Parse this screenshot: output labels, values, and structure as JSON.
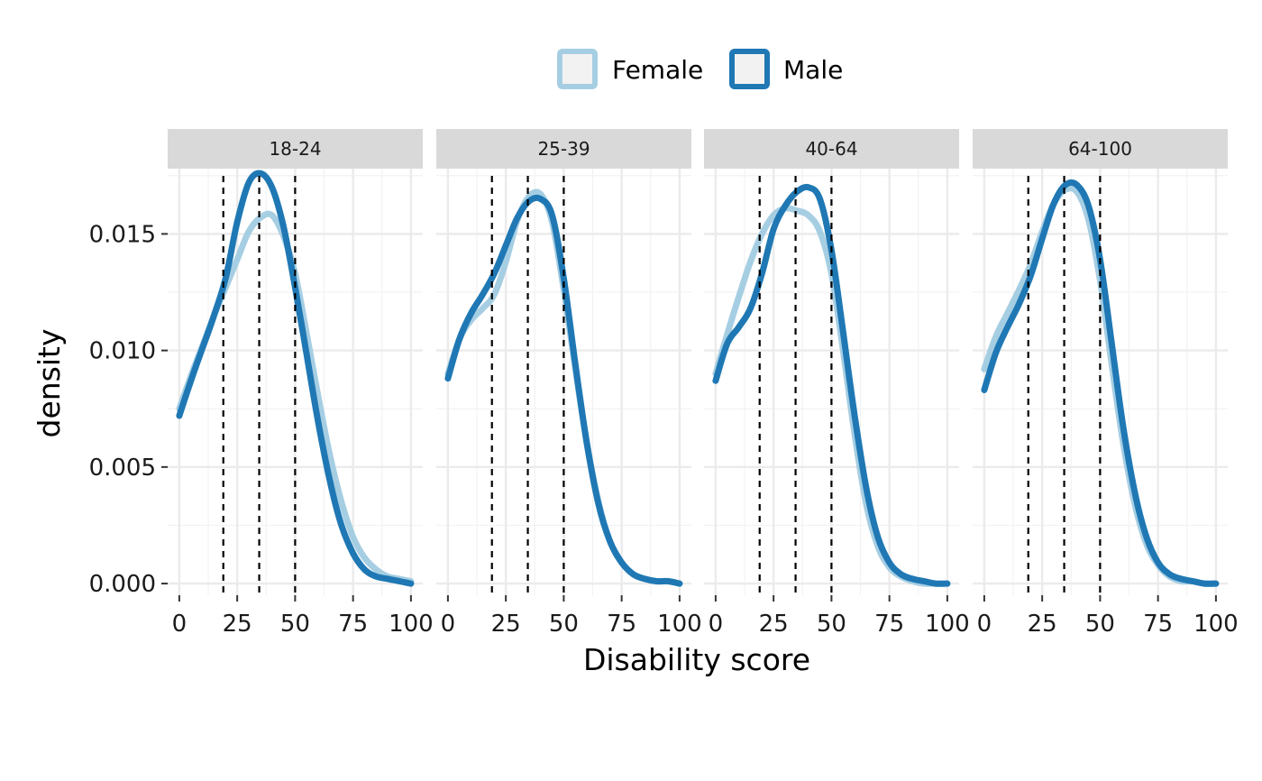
{
  "chart_data": {
    "type": "line",
    "title": "",
    "xlabel": "Disability score",
    "ylabel": "density",
    "xlim": [
      0,
      100
    ],
    "ylim": [
      -0.0005,
      0.0178
    ],
    "x_ticks": [
      0,
      25,
      50,
      75,
      100
    ],
    "y_ticks": [
      0.0,
      0.005,
      0.01,
      0.015
    ],
    "y_tick_labels": [
      "0.000",
      "0.005",
      "0.010",
      "0.015"
    ],
    "grid": true,
    "legend_position": "top",
    "reference_lines_x": [
      19,
      34.5,
      50
    ],
    "reference_line_style": "dashed",
    "series_names": [
      "Female",
      "Male"
    ],
    "series_colors": {
      "Female": "#a6cee3",
      "Male": "#1f78b4"
    },
    "x": [
      0,
      5,
      10,
      15,
      20,
      25,
      30,
      35,
      40,
      45,
      50,
      55,
      60,
      65,
      70,
      75,
      80,
      85,
      90,
      95,
      100
    ],
    "panels": [
      {
        "label": "18-24",
        "series": [
          {
            "name": "Female",
            "values": [
              0.0075,
              0.0089,
              0.0102,
              0.0115,
              0.0127,
              0.0139,
              0.0151,
              0.0157,
              0.0158,
              0.0149,
              0.0133,
              0.0107,
              0.008,
              0.0055,
              0.0035,
              0.002,
              0.0011,
              0.0006,
              0.0003,
              0.0002,
              0.0001
            ]
          },
          {
            "name": "Male",
            "values": [
              0.0072,
              0.0087,
              0.0101,
              0.0115,
              0.0131,
              0.0155,
              0.0172,
              0.0176,
              0.017,
              0.0153,
              0.0127,
              0.0098,
              0.0069,
              0.0044,
              0.0025,
              0.0013,
              0.0006,
              0.0003,
              0.0002,
              0.0001,
              0.0
            ]
          }
        ]
      },
      {
        "label": "25-39",
        "series": [
          {
            "name": "Female",
            "values": [
              0.009,
              0.0105,
              0.0113,
              0.0118,
              0.0124,
              0.0138,
              0.0156,
              0.0166,
              0.0167,
              0.0155,
              0.0126,
              0.0092,
              0.006,
              0.0035,
              0.0018,
              0.0009,
              0.0004,
              0.0002,
              0.0001,
              0.0001,
              0.0
            ]
          },
          {
            "name": "Male",
            "values": [
              0.0088,
              0.0105,
              0.0116,
              0.0124,
              0.0133,
              0.0145,
              0.0157,
              0.0164,
              0.0165,
              0.0158,
              0.0131,
              0.0094,
              0.006,
              0.0034,
              0.0018,
              0.0009,
              0.0004,
              0.0002,
              0.0001,
              0.0001,
              0.0
            ]
          }
        ]
      },
      {
        "label": "40-64",
        "series": [
          {
            "name": "Female",
            "values": [
              0.009,
              0.0107,
              0.0123,
              0.0138,
              0.015,
              0.0158,
              0.0161,
              0.016,
              0.0158,
              0.0151,
              0.0133,
              0.01,
              0.0064,
              0.0034,
              0.0016,
              0.0007,
              0.0003,
              0.0001,
              0.0,
              0.0,
              0.0
            ]
          },
          {
            "name": "Male",
            "values": [
              0.0087,
              0.0103,
              0.011,
              0.0118,
              0.0133,
              0.0152,
              0.0162,
              0.0168,
              0.017,
              0.0165,
              0.0143,
              0.0108,
              0.0072,
              0.0041,
              0.002,
              0.0009,
              0.0004,
              0.0002,
              0.0001,
              0.0,
              0.0
            ]
          }
        ]
      },
      {
        "label": "64-100",
        "series": [
          {
            "name": "Female",
            "values": [
              0.0092,
              0.0106,
              0.0116,
              0.0126,
              0.0137,
              0.0151,
              0.0163,
              0.0169,
              0.0168,
              0.0156,
              0.013,
              0.0094,
              0.006,
              0.0034,
              0.0017,
              0.0008,
              0.0003,
              0.0001,
              0.0001,
              0.0,
              0.0
            ]
          },
          {
            "name": "Male",
            "values": [
              0.0083,
              0.0099,
              0.011,
              0.012,
              0.0132,
              0.0148,
              0.0163,
              0.0171,
              0.0171,
              0.0162,
              0.0139,
              0.0103,
              0.0067,
              0.0039,
              0.002,
              0.0009,
              0.0004,
              0.0002,
              0.0001,
              0.0,
              0.0
            ]
          }
        ]
      }
    ]
  }
}
